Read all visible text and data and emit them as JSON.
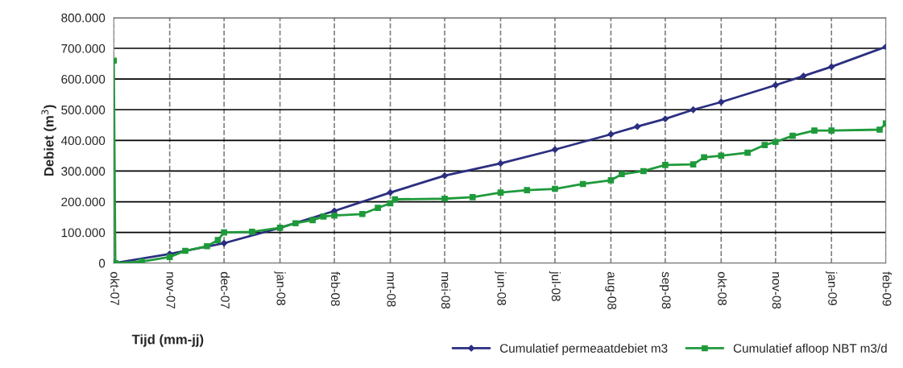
{
  "chart_data": {
    "type": "line",
    "xlabel": "Tijd (mm-jj)",
    "ylabel": "Debiet (m$^{3}$)",
    "xlim": [
      "2007-10-01",
      "2009-02-09"
    ],
    "xticks": [
      {
        "value": "2007-10-01",
        "label": "okt-07"
      },
      {
        "value": "2007-11-06",
        "label": "nov-07"
      },
      {
        "value": "2007-12-11",
        "label": "dec-07"
      },
      {
        "value": "2008-01-16",
        "label": "jan-08"
      },
      {
        "value": "2008-02-20",
        "label": "feb-08"
      },
      {
        "value": "2008-03-27",
        "label": "mrt-08"
      },
      {
        "value": "2008-05-01",
        "label": "mei-08"
      },
      {
        "value": "2008-06-06",
        "label": "jun-08"
      },
      {
        "value": "2008-07-11",
        "label": "jul-08"
      },
      {
        "value": "2008-08-16",
        "label": "aug-08"
      },
      {
        "value": "2008-09-20",
        "label": "sep-08"
      },
      {
        "value": "2008-10-26",
        "label": "okt-08"
      },
      {
        "value": "2008-11-30",
        "label": "nov-08"
      },
      {
        "value": "2009-01-05",
        "label": "jan-09"
      },
      {
        "value": "2009-02-09",
        "label": "feb-09"
      }
    ],
    "ylim": [
      0,
      800000
    ],
    "yticks": [
      0,
      {
        "value": 100000,
        "label": "100.000"
      },
      {
        "value": 200000,
        "label": "200.000"
      },
      {
        "value": 300000,
        "label": "300.000"
      },
      {
        "value": 400000,
        "label": "400.000"
      },
      {
        "value": 500000,
        "label": "500.000"
      },
      {
        "value": 600000,
        "label": "600.000"
      },
      {
        "value": 700000,
        "label": "700.000"
      },
      {
        "value": 800000,
        "label": "800.000"
      }
    ],
    "grid": true,
    "legend": "bottom right",
    "series": [
      {
        "name": "Cumulatief permeaatdebiet m3",
        "color": "#2b2f80",
        "marker": "diamond",
        "x": [
          "2007-10-01",
          "2007-11-06",
          "2007-12-11",
          "2008-01-16",
          "2008-02-20",
          "2008-03-27",
          "2008-05-01",
          "2008-06-06",
          "2008-07-11",
          "2008-08-16",
          "2008-09-02",
          "2008-09-20",
          "2008-10-08",
          "2008-10-26",
          "2008-11-30",
          "2008-12-18",
          "2009-01-05",
          "2009-02-09"
        ],
        "values": [
          0,
          30000,
          65000,
          115000,
          170000,
          230000,
          285000,
          325000,
          370000,
          420000,
          445000,
          470000,
          500000,
          525000,
          580000,
          610000,
          640000,
          705000
        ]
      },
      {
        "name": "Cumulatief afloop NBT m3/d",
        "color": "#1f9a3b",
        "marker": "square",
        "x": [
          "2007-10-01",
          "2007-10-02",
          "2007-10-19",
          "2007-11-06",
          "2007-11-16",
          "2007-11-30",
          "2007-12-07",
          "2007-12-11",
          "2007-12-29",
          "2008-01-16",
          "2008-01-26",
          "2008-02-06",
          "2008-02-13",
          "2008-02-20",
          "2008-03-09",
          "2008-03-19",
          "2008-03-27",
          "2008-03-30",
          "2008-05-01",
          "2008-05-19",
          "2008-06-06",
          "2008-06-23",
          "2008-07-11",
          "2008-07-29",
          "2008-08-16",
          "2008-08-23",
          "2008-09-06",
          "2008-09-20",
          "2008-10-08",
          "2008-10-15",
          "2008-10-26",
          "2008-11-12",
          "2008-11-23",
          "2008-11-30",
          "2008-12-11",
          "2008-12-25",
          "2009-01-05",
          "2009-02-05",
          "2009-02-09"
        ],
        "values": [
          660000,
          0,
          5000,
          20000,
          40000,
          55000,
          75000,
          100000,
          102000,
          115000,
          130000,
          140000,
          152000,
          155000,
          160000,
          180000,
          195000,
          208000,
          210000,
          215000,
          230000,
          238000,
          242000,
          258000,
          270000,
          290000,
          300000,
          320000,
          322000,
          345000,
          350000,
          360000,
          385000,
          395000,
          415000,
          432000,
          432000,
          435000,
          455000
        ]
      }
    ]
  }
}
